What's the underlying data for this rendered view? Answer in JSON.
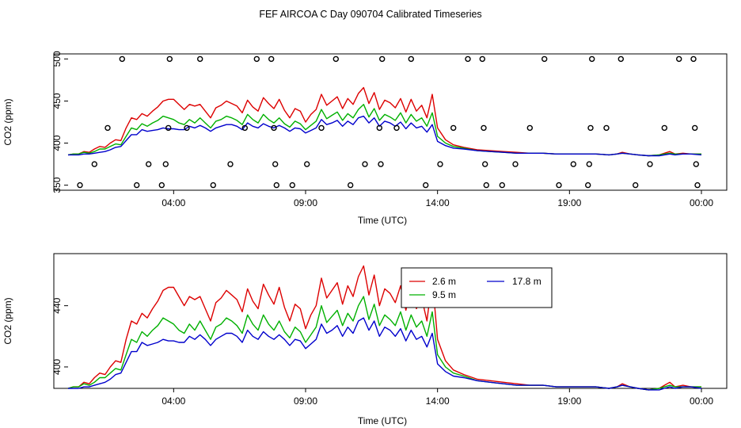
{
  "title": "FEF AIRCOA C  Day 090704  Calibrated Timeseries",
  "chart_data": [
    {
      "type": "line",
      "panel": "top",
      "xlabel": "Time (UTC)",
      "ylabel": "CO2 (ppm)",
      "xlim": [
        0.0,
        24.0
      ],
      "ylim": [
        344,
        506
      ],
      "x_ticks": [
        4,
        9,
        14,
        19,
        24
      ],
      "x_tick_labels": [
        "04:00",
        "09:00",
        "14:00",
        "19:00",
        "00:00"
      ],
      "y_ticks": [
        350,
        400,
        450,
        500
      ],
      "y_tick_labels": [
        "350",
        "400",
        "450",
        "500"
      ],
      "series": [
        {
          "name": "2.6 m",
          "color": "#dd0000"
        },
        {
          "name": "9.5 m",
          "color": "#00b000"
        },
        {
          "name": "17.8 m",
          "color": "#0000cc"
        }
      ],
      "markers": {
        "symbol": "open-circle",
        "points": [
          {
            "x": 0.45,
            "y": 350
          },
          {
            "x": 1.0,
            "y": 375
          },
          {
            "x": 1.5,
            "y": 418
          },
          {
            "x": 2.05,
            "y": 500
          },
          {
            "x": 2.6,
            "y": 350
          },
          {
            "x": 3.05,
            "y": 375
          },
          {
            "x": 3.55,
            "y": 350
          },
          {
            "x": 3.7,
            "y": 375
          },
          {
            "x": 3.8,
            "y": 418
          },
          {
            "x": 3.85,
            "y": 500
          },
          {
            "x": 4.5,
            "y": 418
          },
          {
            "x": 5.0,
            "y": 500
          },
          {
            "x": 5.5,
            "y": 350
          },
          {
            "x": 6.15,
            "y": 375
          },
          {
            "x": 6.7,
            "y": 418
          },
          {
            "x": 7.15,
            "y": 500
          },
          {
            "x": 7.7,
            "y": 500
          },
          {
            "x": 7.8,
            "y": 418
          },
          {
            "x": 7.85,
            "y": 375
          },
          {
            "x": 7.9,
            "y": 350
          },
          {
            "x": 8.5,
            "y": 350
          },
          {
            "x": 9.05,
            "y": 375
          },
          {
            "x": 9.6,
            "y": 418
          },
          {
            "x": 10.15,
            "y": 500
          },
          {
            "x": 10.7,
            "y": 350
          },
          {
            "x": 11.25,
            "y": 375
          },
          {
            "x": 11.8,
            "y": 418
          },
          {
            "x": 11.85,
            "y": 375
          },
          {
            "x": 11.9,
            "y": 500
          },
          {
            "x": 12.45,
            "y": 418
          },
          {
            "x": 13.0,
            "y": 500
          },
          {
            "x": 13.55,
            "y": 350
          },
          {
            "x": 14.1,
            "y": 375
          },
          {
            "x": 14.6,
            "y": 418
          },
          {
            "x": 15.15,
            "y": 500
          },
          {
            "x": 15.7,
            "y": 500
          },
          {
            "x": 15.75,
            "y": 418
          },
          {
            "x": 15.8,
            "y": 375
          },
          {
            "x": 15.85,
            "y": 350
          },
          {
            "x": 16.45,
            "y": 350
          },
          {
            "x": 16.95,
            "y": 375
          },
          {
            "x": 17.5,
            "y": 418
          },
          {
            "x": 18.05,
            "y": 500
          },
          {
            "x": 18.6,
            "y": 350
          },
          {
            "x": 19.15,
            "y": 375
          },
          {
            "x": 19.7,
            "y": 350
          },
          {
            "x": 19.75,
            "y": 375
          },
          {
            "x": 19.8,
            "y": 418
          },
          {
            "x": 19.85,
            "y": 500
          },
          {
            "x": 20.4,
            "y": 418
          },
          {
            "x": 20.95,
            "y": 500
          },
          {
            "x": 21.5,
            "y": 350
          },
          {
            "x": 22.05,
            "y": 375
          },
          {
            "x": 22.6,
            "y": 418
          },
          {
            "x": 23.15,
            "y": 500
          },
          {
            "x": 23.7,
            "y": 500
          },
          {
            "x": 23.75,
            "y": 418
          },
          {
            "x": 23.8,
            "y": 375
          },
          {
            "x": 23.85,
            "y": 350
          }
        ]
      }
    },
    {
      "type": "line",
      "panel": "bottom",
      "xlabel": "Time (UTC)",
      "ylabel": "CO2 (ppm)",
      "xlim": [
        0.0,
        24.0
      ],
      "ylim": [
        386,
        474
      ],
      "x_ticks": [
        4,
        9,
        14,
        19,
        24
      ],
      "x_tick_labels": [
        "04:00",
        "09:00",
        "14:00",
        "19:00",
        "00:00"
      ],
      "y_ticks": [
        400,
        440
      ],
      "y_tick_labels": [
        "400",
        "440"
      ],
      "legend": {
        "placement": "top-center",
        "entries": [
          {
            "label": "2.6 m",
            "color": "#dd0000"
          },
          {
            "label": "17.8 m",
            "color": "#0000cc"
          },
          {
            "label": "9.5 m",
            "color": "#00b000"
          }
        ]
      },
      "series": [
        {
          "name": "2.6 m",
          "color": "#dd0000"
        },
        {
          "name": "9.5 m",
          "color": "#00b000"
        },
        {
          "name": "17.8 m",
          "color": "#0000cc"
        }
      ]
    }
  ],
  "series_shared": {
    "x": [
      0.0,
      0.2,
      0.4,
      0.6,
      0.8,
      1.0,
      1.2,
      1.4,
      1.6,
      1.8,
      2.0,
      2.2,
      2.4,
      2.6,
      2.8,
      3.0,
      3.2,
      3.4,
      3.6,
      3.8,
      4.0,
      4.2,
      4.4,
      4.6,
      4.8,
      5.0,
      5.2,
      5.4,
      5.6,
      5.8,
      6.0,
      6.2,
      6.4,
      6.6,
      6.8,
      7.0,
      7.2,
      7.4,
      7.6,
      7.8,
      8.0,
      8.2,
      8.4,
      8.6,
      8.8,
      9.0,
      9.2,
      9.4,
      9.6,
      9.8,
      10.0,
      10.2,
      10.4,
      10.6,
      10.8,
      11.0,
      11.2,
      11.4,
      11.6,
      11.8,
      12.0,
      12.2,
      12.4,
      12.6,
      12.8,
      13.0,
      13.2,
      13.4,
      13.6,
      13.8,
      14.0,
      14.3,
      14.6,
      15.0,
      15.5,
      16.0,
      16.5,
      17.0,
      17.5,
      18.0,
      18.5,
      19.0,
      19.5,
      20.0,
      20.5,
      20.8,
      21.0,
      21.3,
      21.6,
      22.0,
      22.4,
      22.6,
      22.8,
      23.0,
      23.3,
      23.6,
      24.0
    ],
    "values_2_6m": [
      386,
      387,
      387,
      390,
      389,
      393,
      396,
      395,
      400,
      404,
      403,
      418,
      430,
      428,
      435,
      432,
      438,
      443,
      450,
      452,
      452,
      446,
      440,
      446,
      444,
      446,
      438,
      430,
      442,
      445,
      450,
      447,
      444,
      436,
      451,
      443,
      438,
      454,
      447,
      441,
      452,
      439,
      430,
      441,
      438,
      425,
      434,
      440,
      458,
      445,
      450,
      455,
      441,
      453,
      446,
      459,
      466,
      447,
      460,
      440,
      451,
      448,
      442,
      453,
      437,
      452,
      438,
      445,
      430,
      458,
      418,
      404,
      398,
      395,
      392,
      391,
      390,
      389,
      388,
      388,
      387,
      387,
      387,
      387,
      386,
      387,
      389,
      387,
      386,
      385,
      386,
      388,
      390,
      387,
      388,
      387,
      387
    ],
    "values_9_5m": [
      386,
      387,
      387,
      389,
      388,
      390,
      393,
      393,
      396,
      399,
      398,
      408,
      418,
      416,
      423,
      420,
      424,
      427,
      432,
      430,
      428,
      424,
      422,
      428,
      424,
      430,
      424,
      418,
      426,
      428,
      432,
      430,
      427,
      422,
      434,
      428,
      424,
      434,
      428,
      424,
      430,
      423,
      419,
      426,
      423,
      416,
      421,
      426,
      440,
      429,
      433,
      437,
      427,
      435,
      430,
      440,
      446,
      431,
      441,
      427,
      434,
      431,
      427,
      436,
      424,
      434,
      426,
      430,
      420,
      436,
      408,
      400,
      396,
      394,
      391,
      390,
      389,
      388,
      388,
      388,
      387,
      387,
      387,
      387,
      386,
      387,
      388,
      387,
      386,
      385,
      386,
      387,
      388,
      387,
      387,
      387,
      387
    ],
    "values_17_8m": [
      386,
      386,
      386,
      387,
      387,
      388,
      389,
      390,
      392,
      395,
      396,
      403,
      410,
      410,
      416,
      414,
      415,
      416,
      418,
      417,
      417,
      416,
      416,
      420,
      418,
      421,
      418,
      414,
      418,
      420,
      422,
      422,
      420,
      416,
      424,
      420,
      418,
      423,
      420,
      418,
      421,
      418,
      414,
      418,
      417,
      412,
      415,
      418,
      428,
      422,
      424,
      427,
      420,
      426,
      422,
      430,
      432,
      424,
      430,
      420,
      426,
      424,
      420,
      425,
      417,
      424,
      418,
      420,
      413,
      422,
      402,
      397,
      394,
      393,
      391,
      390,
      389,
      388,
      388,
      388,
      387,
      387,
      387,
      387,
      386,
      387,
      388,
      387,
      386,
      385,
      385,
      386,
      387,
      386,
      387,
      387,
      386
    ]
  }
}
